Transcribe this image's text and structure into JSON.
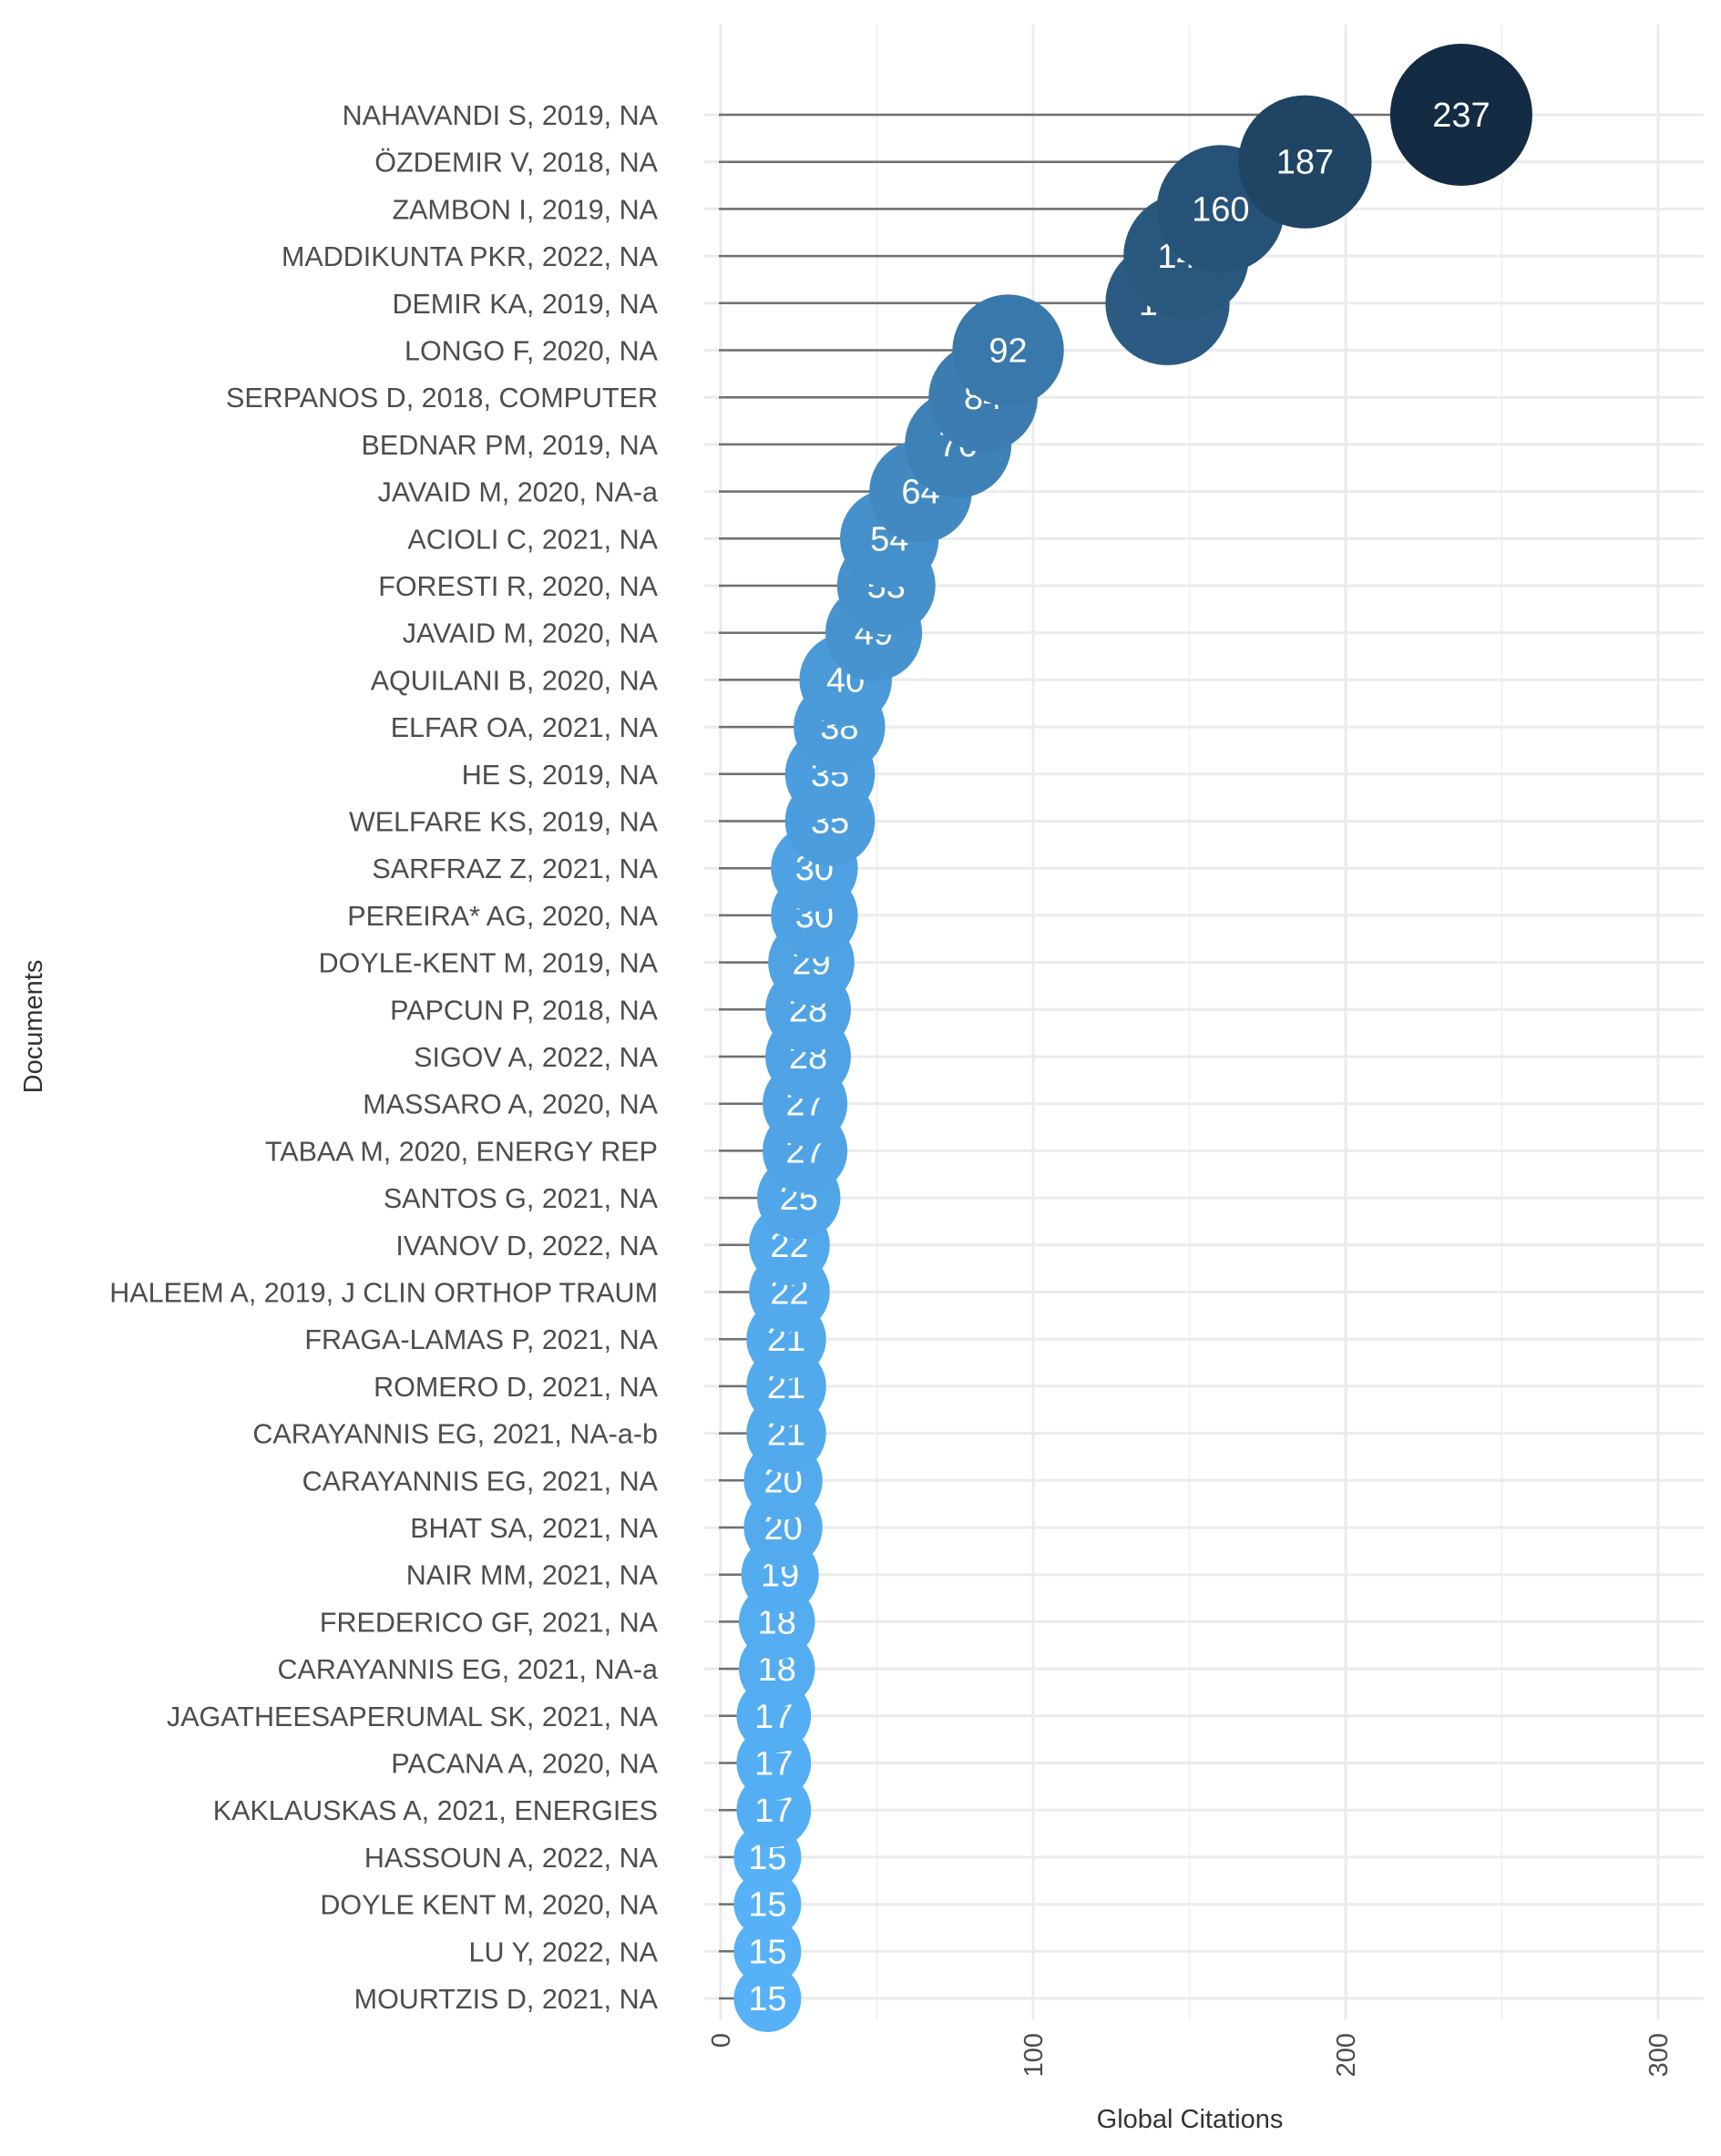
{
  "chart_data": {
    "type": "lollipop",
    "title": "",
    "xlabel": "Global Citations",
    "ylabel": "Documents",
    "xlim": [
      0,
      300
    ],
    "x_ticks": [
      0,
      100,
      200,
      300
    ],
    "grid": true,
    "categories": [
      "NAHAVANDI S, 2019, NA",
      "ÖZDEMIR V, 2018, NA",
      "ZAMBON I, 2019, NA",
      "MADDIKUNTA PKR, 2022, NA",
      "DEMIR KA, 2019, NA",
      "LONGO F, 2020, NA",
      "SERPANOS D, 2018, COMPUTER",
      "BEDNAR PM, 2019, NA",
      "JAVAID M, 2020, NA-a",
      "ACIOLI C, 2021, NA",
      "FORESTI R, 2020, NA",
      "JAVAID M, 2020, NA",
      "AQUILANI B, 2020, NA",
      "ELFAR OA, 2021, NA",
      "HE S, 2019, NA",
      "WELFARE KS, 2019, NA",
      "SARFRAZ Z, 2021, NA",
      "PEREIRA* AG, 2020, NA",
      "DOYLE-KENT M, 2019, NA",
      "PAPCUN P, 2018, NA",
      "SIGOV A, 2022, NA",
      "MASSARO A, 2020, NA",
      "TABAA M, 2020, ENERGY REP",
      "SANTOS G, 2021, NA",
      "IVANOV D, 2022, NA",
      "HALEEM A, 2019, J CLIN ORTHOP TRAUM",
      "FRAGA-LAMAS P, 2021, NA",
      "ROMERO D, 2021, NA",
      "CARAYANNIS EG, 2021, NA-a-b",
      "CARAYANNIS EG, 2021, NA",
      "BHAT SA, 2021, NA",
      "NAIR MM, 2021, NA",
      "FREDERICO GF, 2021, NA",
      "CARAYANNIS EG, 2021, NA-a",
      "JAGATHEESAPERUMAL SK, 2021, NA",
      "PACANA A, 2020, NA",
      "KAKLAUSKAS A, 2021, ENERGIES",
      "HASSOUN A, 2022, NA",
      "DOYLE KENT M, 2020, NA",
      "LU Y, 2022, NA",
      "MOURTZIS D, 2021, NA"
    ],
    "values": [
      237,
      187,
      160,
      149,
      143,
      92,
      84,
      76,
      64,
      54,
      53,
      49,
      40,
      38,
      35,
      35,
      30,
      30,
      29,
      28,
      28,
      27,
      27,
      25,
      22,
      22,
      21,
      21,
      21,
      20,
      20,
      19,
      18,
      18,
      17,
      17,
      17,
      15,
      15,
      15,
      15
    ],
    "color_scale": {
      "low": "#56B1F7",
      "high": "#132B43"
    },
    "stem_color": "#707070",
    "label_color": "#ffffff",
    "legend": "none"
  }
}
